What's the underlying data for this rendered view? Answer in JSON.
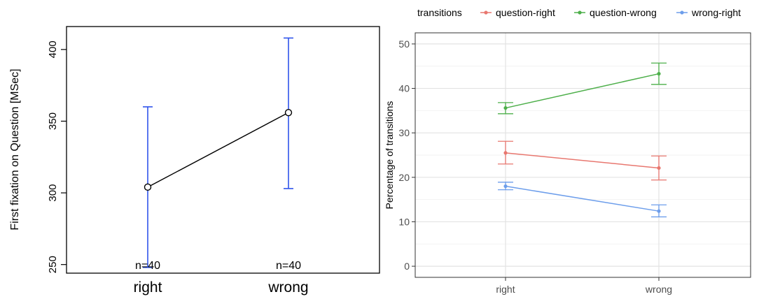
{
  "chart_data": [
    {
      "type": "line",
      "title": "",
      "xlabel": "",
      "ylabel": "First fixation on Question [MSec]",
      "categories": [
        "right",
        "wrong"
      ],
      "ylim": [
        244,
        416
      ],
      "yticks": [
        250,
        300,
        350,
        400
      ],
      "grid": false,
      "series": [
        {
          "values": [
            304,
            356
          ],
          "error_low": [
            248,
            303
          ],
          "error_high": [
            360,
            408
          ],
          "line_color": "#000000",
          "error_color": "#2f54eb",
          "marker": "open-circle"
        }
      ],
      "annotations": [
        "n=40",
        "n=40"
      ]
    },
    {
      "type": "line",
      "title": "",
      "xlabel": "",
      "ylabel": "Percentage of transitions",
      "categories": [
        "right",
        "wrong"
      ],
      "ylim": [
        -2.5,
        52.5
      ],
      "yticks": [
        0,
        10,
        20,
        30,
        40,
        50
      ],
      "grid": true,
      "legend": {
        "title": "transitions",
        "position": "top"
      },
      "series": [
        {
          "name": "question-right",
          "color": "#e8776f",
          "values": [
            25.5,
            22.1
          ],
          "error_low": [
            23.0,
            19.4
          ],
          "error_high": [
            28.1,
            24.8
          ]
        },
        {
          "name": "question-wrong",
          "color": "#4daf4a",
          "values": [
            35.6,
            43.3
          ],
          "error_low": [
            34.3,
            40.9
          ],
          "error_high": [
            36.8,
            45.7
          ]
        },
        {
          "name": "wrong-right",
          "color": "#6d9eeb",
          "values": [
            18.0,
            12.4
          ],
          "error_low": [
            17.2,
            11.1
          ],
          "error_high": [
            18.9,
            13.8
          ]
        }
      ]
    }
  ]
}
